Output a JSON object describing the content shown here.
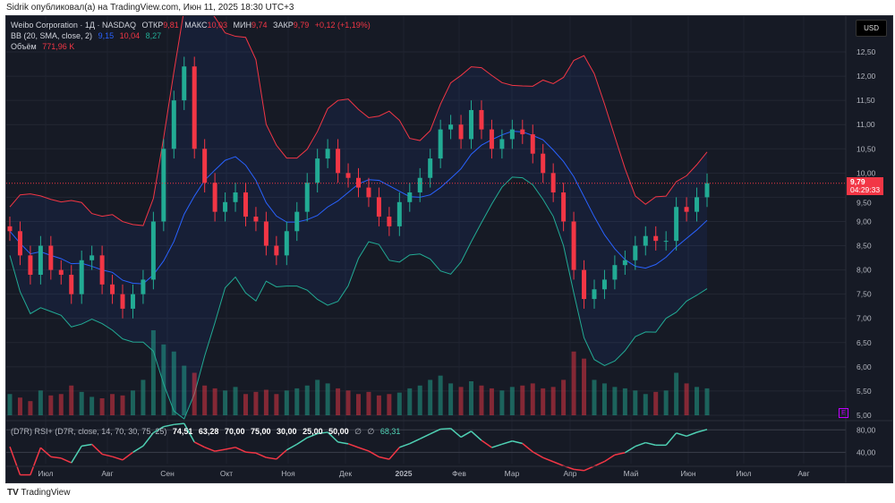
{
  "header": {
    "publisher": "Sidrik опубликовал(а) на TradingView.com, Июн 11, 2025 18:30 UTC+3"
  },
  "legend": {
    "symbol": "Weibo Corporation · 1Д · NASDAQ",
    "open_label": "ОТКР",
    "open": "9,81",
    "high_label": "МАКС",
    "high": "10,03",
    "low_label": "МИН",
    "low": "9,74",
    "close_label": "ЗАКР",
    "close": "9,79",
    "change": "+0,12 (+1,19%)",
    "bb_label": "BB (20, SMA, close, 2)",
    "bb_basis": "9,15",
    "bb_upper": "10,04",
    "bb_lower": "8,27",
    "vol_label": "Объём",
    "vol": "771,96 K"
  },
  "rsi": {
    "label": "(D7R) RSI+ (D7R, close, 14, 70, 30, 75, 25)",
    "v1": "74,51",
    "v2": "63,28",
    "v3": "70,00",
    "v4": "75,00",
    "v5": "30,00",
    "v6": "25,00",
    "v7": "50,00",
    "v8": "∅",
    "v9": "∅",
    "v10": "68,31",
    "axis": [
      "80,00",
      "40,00"
    ]
  },
  "currency": "USD",
  "last_price": {
    "price": "9,79",
    "countdown": "04:29:33"
  },
  "earnings_marker": "E",
  "footer": {
    "brand": "TradingView"
  },
  "colors": {
    "up": "#22ab94",
    "down": "#f23645",
    "basis": "#2962ff"
  },
  "chart_data": {
    "type": "candlestick",
    "price_ticks": [
      "12,50",
      "12,00",
      "11,50",
      "11,00",
      "10,50",
      "10,00",
      "9,50",
      "9,00",
      "8,50",
      "8,00",
      "7,50",
      "7,00",
      "6,50",
      "6,00",
      "5,50",
      "5,00"
    ],
    "ylim": [
      5,
      12.5
    ],
    "time_ticks": [
      "Июл",
      "Авг",
      "Сен",
      "Окт",
      "Ноя",
      "Дек",
      "2025",
      "Фев",
      "Мар",
      "Апр",
      "Май",
      "Июн",
      "Июл",
      "Авг"
    ],
    "closes": [
      8.8,
      8.3,
      7.9,
      8.5,
      8.0,
      7.9,
      7.5,
      8.2,
      8.3,
      7.7,
      7.5,
      7.2,
      7.5,
      7.8,
      9.0,
      10.5,
      11.5,
      12.2,
      10.5,
      9.8,
      9.2,
      9.4,
      9.6,
      9.1,
      9.0,
      8.5,
      8.3,
      8.8,
      9.2,
      9.8,
      10.3,
      10.5,
      10.0,
      9.9,
      9.7,
      9.5,
      9.1,
      8.9,
      9.4,
      9.6,
      9.9,
      10.3,
      10.9,
      11.0,
      10.7,
      11.3,
      10.9,
      10.5,
      10.7,
      10.9,
      10.8,
      10.4,
      10.0,
      9.6,
      9.0,
      8.0,
      7.4,
      7.6,
      7.8,
      8.1,
      8.2,
      8.5,
      8.7,
      8.6,
      8.6,
      9.3,
      9.2,
      9.5,
      9.79
    ],
    "volumes": [
      300,
      250,
      200,
      350,
      280,
      300,
      420,
      330,
      260,
      240,
      300,
      280,
      350,
      500,
      1200,
      1000,
      900,
      700,
      600,
      420,
      380,
      350,
      400,
      300,
      330,
      360,
      300,
      350,
      380,
      420,
      500,
      450,
      380,
      350,
      300,
      330,
      280,
      300,
      320,
      380,
      420,
      500,
      560,
      450,
      400,
      480,
      420,
      380,
      350,
      400,
      420,
      450,
      380,
      400,
      500,
      900,
      800,
      500,
      450,
      400,
      380,
      350,
      300,
      330,
      350,
      600,
      450,
      400,
      380
    ]
  }
}
